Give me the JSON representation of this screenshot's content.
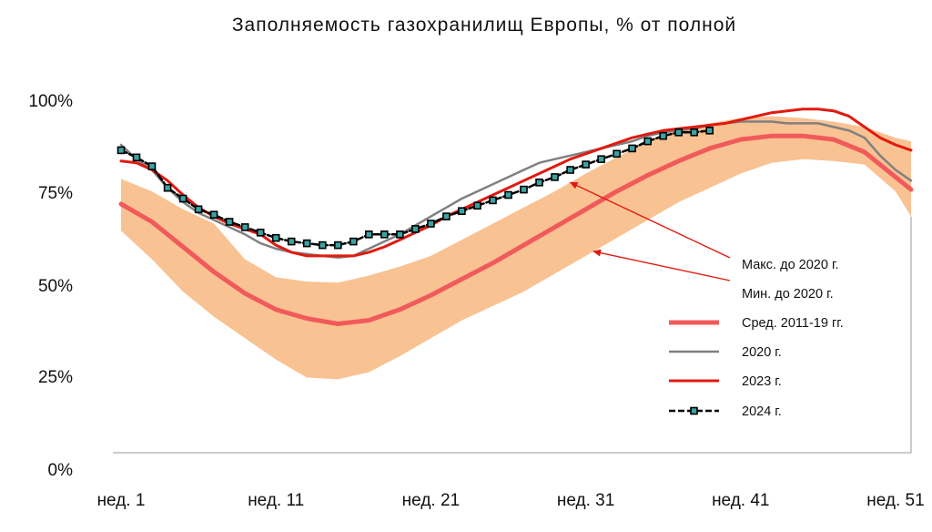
{
  "colors": {
    "band": "#f9c293",
    "avg": "#f15a5a",
    "y2020": "#808080",
    "y2023": "#e01a10",
    "y2024": "#000000",
    "marker_fill": "#3aa3a3",
    "arrow": "#e01a10",
    "axis": "#999999"
  },
  "chart_data": {
    "type": "line",
    "title": "Заполняемость газохранилищ Европы, % от полной",
    "xlabel": "",
    "ylabel": "",
    "xlim": [
      1,
      52
    ],
    "ylim": [
      0,
      100
    ],
    "yticks": [
      {
        "value": 0,
        "label": "0%"
      },
      {
        "value": 25,
        "label": "25%"
      },
      {
        "value": 50,
        "label": "50%"
      },
      {
        "value": 75,
        "label": "75%"
      },
      {
        "value": 100,
        "label": "100%"
      }
    ],
    "xticks": [
      {
        "value": 1,
        "label": "нед. 1"
      },
      {
        "value": 11,
        "label": "нед. 11"
      },
      {
        "value": 21,
        "label": "нед. 21"
      },
      {
        "value": 31,
        "label": "нед. 31"
      },
      {
        "value": 41,
        "label": "нед. 41"
      },
      {
        "value": 51,
        "label": "нед. 51"
      }
    ],
    "band": {
      "x": [
        1,
        3,
        5,
        7,
        9,
        11,
        13,
        15,
        17,
        19,
        21,
        23,
        25,
        27,
        29,
        31,
        33,
        35,
        37,
        39,
        41,
        43,
        45,
        47,
        49,
        51,
        52
      ],
      "max": [
        76.5,
        73,
        68,
        64,
        54,
        49,
        47.8,
        47.5,
        49.5,
        52,
        55,
        59.5,
        64,
        68.5,
        73,
        78,
        82.5,
        87,
        90,
        92,
        93.5,
        94,
        93.5,
        92.5,
        91,
        88,
        87
      ],
      "min": [
        62,
        54,
        45,
        38,
        32,
        26,
        21,
        20.5,
        22.5,
        27,
        32,
        37,
        41,
        45,
        50,
        55,
        60,
        65,
        70,
        74,
        78,
        81,
        82,
        81.5,
        80.5,
        73,
        66
      ]
    },
    "series": [
      {
        "key": "avg",
        "x": [
          1,
          3,
          5,
          7,
          9,
          11,
          13,
          15,
          17,
          19,
          21,
          23,
          25,
          27,
          29,
          31,
          33,
          35,
          37,
          39,
          41,
          43,
          45,
          47,
          49,
          51,
          52
        ],
        "y": [
          69.5,
          64.5,
          57.5,
          50.5,
          44.5,
          40,
          37.5,
          36,
          37,
          40,
          44,
          48.5,
          53,
          58,
          63,
          68,
          73,
          77.5,
          81.5,
          85,
          87.5,
          88.5,
          88.5,
          87.5,
          84,
          77,
          73.5
        ]
      },
      {
        "key": "y2020",
        "x": [
          1,
          2,
          3,
          4,
          5,
          6,
          7,
          8,
          9,
          10,
          11,
          12,
          13,
          14,
          15,
          16,
          17,
          18,
          19,
          20,
          21,
          22,
          23,
          24,
          25,
          26,
          27,
          28,
          29,
          30,
          31,
          32,
          33,
          34,
          35,
          36,
          37,
          38,
          39,
          40,
          41,
          42,
          43,
          44,
          45,
          46,
          47,
          48,
          49,
          50,
          51,
          52
        ],
        "y": [
          86,
          82,
          79,
          74,
          70,
          67,
          65,
          63,
          61,
          58.5,
          57,
          56,
          55.5,
          55,
          54.5,
          55,
          57,
          59,
          61,
          63.5,
          66,
          68.5,
          71,
          73,
          75,
          77,
          79,
          81,
          82,
          83,
          84,
          85,
          86,
          87,
          88.5,
          89.5,
          90,
          90.5,
          91.5,
          92,
          92.5,
          92.5,
          92.5,
          92,
          92,
          92,
          91,
          90,
          88,
          83,
          79,
          76
        ]
      },
      {
        "key": "y2023",
        "x": [
          1,
          2,
          3,
          4,
          5,
          6,
          7,
          8,
          9,
          10,
          11,
          12,
          13,
          14,
          15,
          16,
          17,
          18,
          19,
          20,
          21,
          22,
          23,
          24,
          25,
          26,
          27,
          28,
          29,
          30,
          31,
          32,
          33,
          34,
          35,
          36,
          37,
          38,
          39,
          40,
          41,
          42,
          43,
          44,
          45,
          46,
          47,
          48,
          49,
          50,
          51,
          52
        ],
        "y": [
          81.5,
          81,
          79,
          76,
          72,
          68.5,
          66,
          64,
          62.5,
          61,
          58,
          56,
          55,
          55,
          55,
          55,
          56,
          57.5,
          59.5,
          61.5,
          63.5,
          66,
          68,
          70,
          72,
          74,
          76,
          78,
          80,
          82,
          83.5,
          85,
          86.5,
          88,
          89,
          90,
          90.5,
          91,
          91.5,
          92,
          93,
          94,
          95,
          95.5,
          96,
          96,
          95.5,
          94,
          91,
          88,
          86,
          84.5
        ]
      },
      {
        "key": "y2024",
        "x": [
          1,
          2,
          3,
          4,
          5,
          6,
          7,
          8,
          9,
          10,
          11,
          12,
          13,
          14,
          15,
          16,
          17,
          18,
          19,
          20,
          21,
          22,
          23,
          24,
          25,
          26,
          27,
          28,
          29,
          30,
          31,
          32,
          33,
          34,
          35,
          36,
          37,
          38,
          39
        ],
        "y": [
          84.5,
          82.5,
          80,
          74,
          71,
          68,
          66.5,
          64.5,
          63,
          61.5,
          60,
          59,
          58.5,
          58,
          58,
          59,
          61,
          61,
          61,
          62.5,
          64,
          66,
          67.5,
          69,
          70.5,
          72,
          73.5,
          75.5,
          77,
          79,
          80.5,
          82,
          83.5,
          85,
          87,
          88.5,
          89.5,
          89.5,
          90
        ]
      }
    ],
    "legend": [
      {
        "key": "max",
        "label": "Макс. до 2020 г."
      },
      {
        "key": "min",
        "label": "Мин. до 2020 г."
      },
      {
        "key": "avg",
        "label": "Сред. 2011-19 гг."
      },
      {
        "key": "y2020",
        "label": "2020 г."
      },
      {
        "key": "y2023",
        "label": "2023 г."
      },
      {
        "key": "y2024",
        "label": "2024 г."
      }
    ],
    "legend_position": "right",
    "grid": false
  }
}
